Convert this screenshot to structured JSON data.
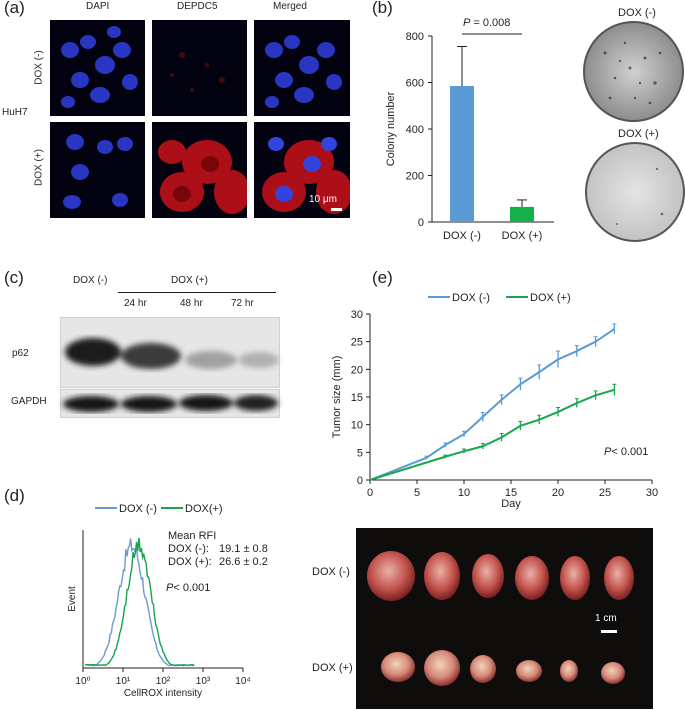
{
  "panel_a": {
    "label": "(a)",
    "col_headers": [
      "DAPI",
      "DEPDC5",
      "Merged"
    ],
    "row_labels": [
      "DOX (-)",
      "DOX (+)"
    ],
    "cell_line": "HuH7",
    "scale_bar": "10 μm"
  },
  "panel_b": {
    "label": "(b)",
    "pvalue_prefix": "P",
    "pvalue_rest": " = 0.008",
    "dish_labels": [
      "DOX (-)",
      "DOX (+)"
    ]
  },
  "panel_c": {
    "label": "(c)",
    "dox_neg": "DOX (-)",
    "dox_pos": "DOX (+)",
    "timepoints": [
      "24 hr",
      "48 hr",
      "72 hr"
    ],
    "bands": [
      "p62",
      "GAPDH"
    ]
  },
  "panel_d": {
    "label": "(d)",
    "mean_rfi_title": "Mean RFI",
    "rfi_rows": [
      {
        "name": "DOX (-):",
        "value": "19.1 ± 0.8"
      },
      {
        "name": "DOX (+):",
        "value": "26.6 ± 0.2"
      }
    ],
    "pvalue_prefix": "P",
    "pvalue_rest": "< 0.001",
    "colors": {
      "dox_neg": "#6b9bd1",
      "dox_pos": "#16a34a"
    }
  },
  "panel_e": {
    "label": "(e)",
    "pvalue_prefix": "P",
    "pvalue_rest": "< 0.001",
    "photo_labels": [
      "DOX (-)",
      "DOX (+)"
    ],
    "scale_bar": "1 cm"
  },
  "chart_data": [
    {
      "type": "bar",
      "panel": "b",
      "categories": [
        "DOX (-)",
        "DOX (+)"
      ],
      "values": [
        585,
        65
      ],
      "errors": [
        170,
        30
      ],
      "ylabel": "Colony number",
      "ylim": [
        0,
        800
      ],
      "yticks": [
        0,
        200,
        400,
        600,
        800
      ],
      "colors": [
        "#5b9bd5",
        "#16b04a"
      ]
    },
    {
      "type": "line",
      "panel": "e",
      "xlabel": "Day",
      "ylabel": "Tumor size (mm)",
      "xlim": [
        0,
        30
      ],
      "ylim": [
        0,
        30
      ],
      "xticks": [
        0,
        5,
        10,
        15,
        20,
        25,
        30
      ],
      "yticks": [
        0,
        5,
        10,
        15,
        20,
        25,
        30
      ],
      "legend_position": "top",
      "series": [
        {
          "name": "DOX (-)",
          "color": "#5b9bd5",
          "x": [
            0,
            6,
            8,
            10,
            12,
            14,
            16,
            18,
            20,
            22,
            24,
            26
          ],
          "y": [
            0,
            4,
            6.3,
            8.3,
            11.4,
            14.5,
            17.3,
            19.5,
            21.8,
            23.3,
            25.0,
            27.3
          ],
          "err": [
            0,
            0.3,
            0.4,
            0.5,
            0.8,
            0.9,
            1.1,
            1.3,
            1.5,
            1.0,
            0.9,
            0.9
          ]
        },
        {
          "name": "DOX (+)",
          "color": "#18a64f",
          "x": [
            0,
            8,
            10,
            12,
            14,
            16,
            18,
            20,
            22,
            24,
            26
          ],
          "y": [
            0,
            4.2,
            5.2,
            6.1,
            7.7,
            9.8,
            10.9,
            12.3,
            13.9,
            15.3,
            16.3
          ],
          "err": [
            0,
            0.3,
            0.4,
            0.5,
            0.7,
            0.8,
            0.8,
            0.8,
            0.8,
            0.8,
            1.0
          ]
        }
      ]
    },
    {
      "type": "area",
      "panel": "d",
      "xlabel": "CellROX intensity",
      "ylabel": "Event",
      "xscale": "log",
      "xticks": [
        "10⁰",
        "10¹",
        "10²",
        "10³",
        "10⁴"
      ],
      "series": [
        {
          "name": "DOX (-)"
        },
        {
          "name": "DOX(+)"
        }
      ]
    }
  ]
}
